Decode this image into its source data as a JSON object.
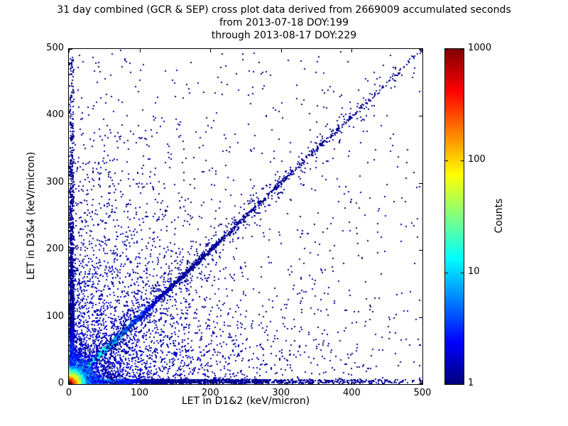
{
  "chart": {
    "title_line1": "31 day combined (GCR & SEP) cross plot data derived from 2669009 accumulated seconds",
    "title_line2": "from 2013-07-18 DOY:199",
    "title_line3": "through 2013-08-17 DOY:229",
    "xlabel": "LET in D1&2 (keV/micron)",
    "ylabel": "LET in D3&4 (keV/micron)",
    "colorbar_label": "Counts"
  },
  "chart_data": {
    "type": "heatmap",
    "title": "31 day combined (GCR & SEP) cross plot data derived from 2669009 accumulated seconds from 2013-07-18 DOY:199 through 2013-08-17 DOY:229",
    "xlabel": "LET in D1&2 (keV/micron)",
    "ylabel": "LET in D3&4 (keV/micron)",
    "xlim": [
      0,
      500
    ],
    "ylim": [
      0,
      500
    ],
    "x_ticks": [
      0,
      100,
      200,
      300,
      400,
      500
    ],
    "y_ticks": [
      0,
      100,
      200,
      300,
      400,
      500
    ],
    "grid": false,
    "colorbar": {
      "label": "Counts",
      "scale": "log",
      "min": 1,
      "max": 1000,
      "ticks": [
        1000,
        100,
        10,
        1
      ],
      "colormap": "jet"
    },
    "colormap_stops": [
      [
        0.0,
        "#00007F"
      ],
      [
        0.125,
        "#0000FF"
      ],
      [
        0.375,
        "#00FFFF"
      ],
      [
        0.625,
        "#FFFF00"
      ],
      [
        0.875,
        "#FF0000"
      ],
      [
        1.0,
        "#7F0000"
      ]
    ],
    "point_color_low": "#00008B",
    "seed": 20130718,
    "features": [
      {
        "name": "background_falloff",
        "type": "exp2d",
        "n": 3200,
        "scale_x": 105,
        "scale_y": 105,
        "rmax": 320,
        "count_near": 2,
        "count_far": 1
      },
      {
        "name": "uniform_sparse",
        "type": "uniform",
        "n": 520,
        "count_near": 1,
        "count_far": 1
      },
      {
        "name": "x_axis_band",
        "type": "band_x",
        "n": 2800,
        "falloff": 140,
        "thickness": 6,
        "count_near": 25,
        "count_far": 1,
        "count_falloff": 120
      },
      {
        "name": "y_axis_band",
        "type": "band_y",
        "n": 1600,
        "falloff": 150,
        "thickness": 6,
        "count_near": 15,
        "count_far": 1,
        "count_falloff": 100
      },
      {
        "name": "main_diagonal",
        "type": "diagonal",
        "n": 2200,
        "falloff": 140,
        "length": 500,
        "spread": 4,
        "count_near": 35,
        "count_far": 1,
        "count_falloff": 150
      },
      {
        "name": "broad_diagonal_scatter",
        "type": "diagonal",
        "n": 800,
        "falloff": 180,
        "length": 480,
        "spread": 28,
        "count_near": 2,
        "count_far": 1,
        "count_falloff": 60
      },
      {
        "name": "origin_mid_cluster",
        "type": "exp2d",
        "n": 2000,
        "scale_x": 16,
        "scale_y": 16,
        "rmax": 60,
        "count_near": 30,
        "count_far": 1
      },
      {
        "name": "origin_hot_core",
        "type": "exp2d",
        "n": 2500,
        "scale_x": 6,
        "scale_y": 6,
        "rmax": 30,
        "count_near": 900,
        "count_far": 2
      }
    ]
  }
}
